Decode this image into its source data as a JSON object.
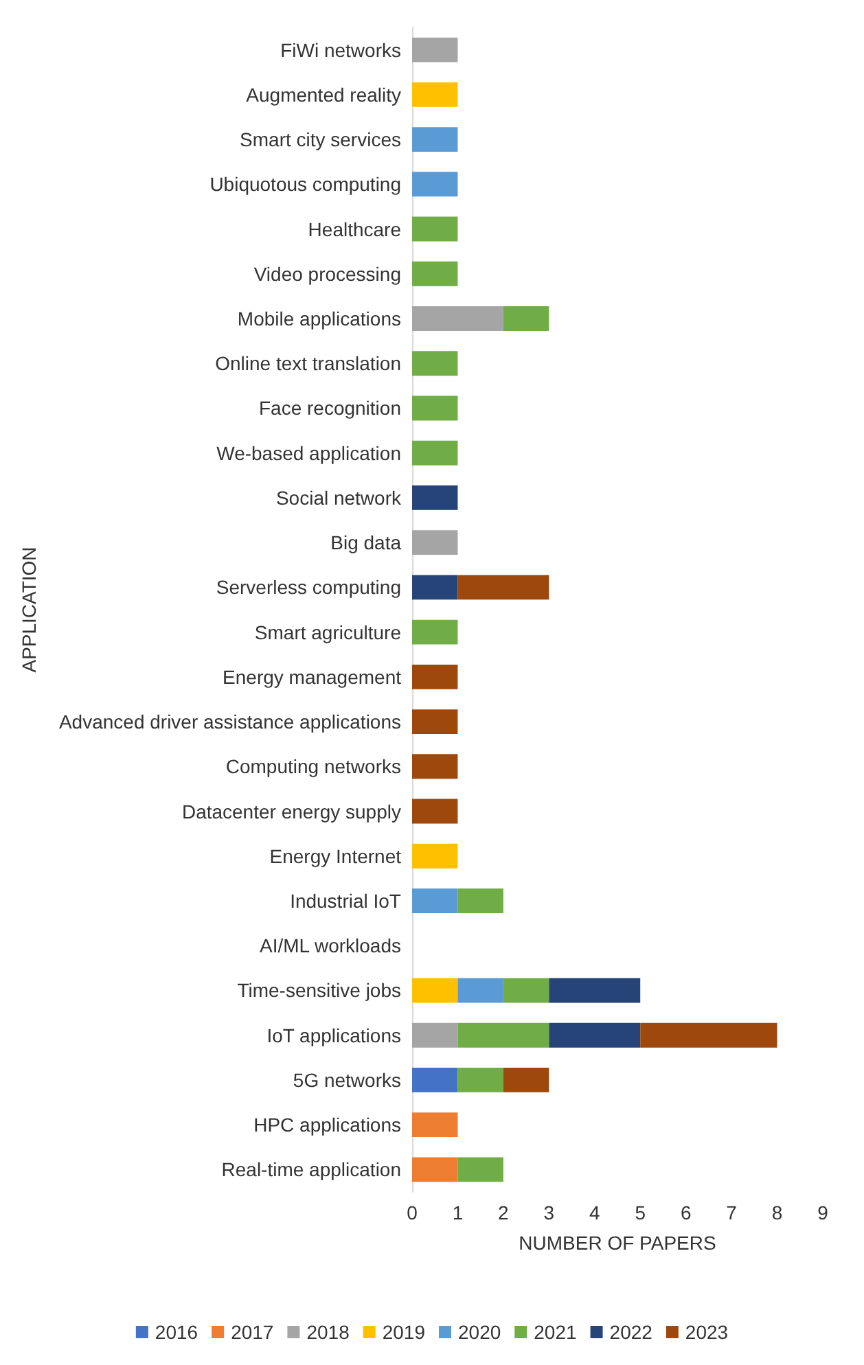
{
  "chart_data": {
    "type": "bar",
    "orientation": "horizontal",
    "stacked": true,
    "xlabel": "NUMBER OF PAPERS",
    "ylabel": "APPLICATION",
    "categories": [
      "FiWi networks",
      "Augmented reality",
      "Smart city services",
      "Ubiquotous computing",
      "Healthcare",
      "Video processing",
      "Mobile applications",
      "Online text translation",
      "Face recognition",
      "We-based application",
      "Social network",
      "Big data",
      "Serverless computing",
      "Smart agriculture",
      "Energy management",
      "Advanced driver assistance applications",
      "Computing networks",
      "Datacenter energy supply",
      "Energy Internet",
      "Industrial IoT",
      "AI/ML workloads",
      "Time-sensitive jobs",
      "IoT applications",
      "5G networks",
      "HPC applications",
      "Real-time application"
    ],
    "series": [
      {
        "name": "2016",
        "color": "#4472c4",
        "values": [
          null,
          null,
          null,
          null,
          null,
          null,
          null,
          null,
          null,
          null,
          null,
          null,
          null,
          null,
          null,
          null,
          null,
          null,
          null,
          null,
          null,
          null,
          null,
          1,
          null,
          null
        ]
      },
      {
        "name": "2017",
        "color": "#ed7d31",
        "values": [
          null,
          null,
          null,
          null,
          null,
          null,
          null,
          null,
          null,
          null,
          null,
          null,
          null,
          null,
          null,
          null,
          null,
          null,
          null,
          null,
          null,
          null,
          null,
          null,
          1,
          1
        ]
      },
      {
        "name": "2018",
        "color": "#a5a5a5",
        "values": [
          1,
          null,
          null,
          null,
          null,
          null,
          2,
          null,
          null,
          null,
          null,
          1,
          null,
          null,
          null,
          null,
          null,
          null,
          null,
          null,
          null,
          null,
          1,
          null,
          null,
          null
        ]
      },
      {
        "name": "2019",
        "color": "#ffc000",
        "values": [
          null,
          1,
          null,
          null,
          null,
          null,
          null,
          null,
          null,
          null,
          null,
          null,
          null,
          null,
          null,
          null,
          null,
          null,
          1,
          null,
          null,
          1,
          null,
          null,
          null,
          null
        ]
      },
      {
        "name": "2020",
        "color": "#5b9bd5",
        "values": [
          null,
          null,
          1,
          1,
          null,
          null,
          null,
          null,
          null,
          null,
          null,
          null,
          null,
          null,
          null,
          null,
          null,
          null,
          null,
          1,
          null,
          1,
          null,
          null,
          null,
          null
        ]
      },
      {
        "name": "2021",
        "color": "#70ad47",
        "values": [
          null,
          null,
          null,
          null,
          1,
          1,
          1,
          1,
          1,
          1,
          null,
          null,
          null,
          1,
          null,
          null,
          null,
          null,
          null,
          1,
          null,
          1,
          2,
          1,
          null,
          1
        ]
      },
      {
        "name": "2022",
        "color": "#264478",
        "values": [
          null,
          null,
          null,
          null,
          null,
          null,
          null,
          null,
          null,
          null,
          1,
          null,
          1,
          null,
          null,
          null,
          null,
          null,
          null,
          null,
          null,
          2,
          2,
          null,
          null,
          null
        ]
      },
      {
        "name": "2023",
        "color": "#9e480e",
        "values": [
          null,
          null,
          null,
          null,
          null,
          null,
          null,
          null,
          null,
          null,
          null,
          null,
          2,
          null,
          1,
          1,
          1,
          1,
          null,
          null,
          null,
          null,
          3,
          1,
          null,
          null
        ]
      }
    ],
    "xlim": [
      0,
      9
    ],
    "xticks": [
      0,
      1,
      2,
      3,
      4,
      5,
      6,
      7,
      8,
      9
    ],
    "grid": false,
    "legend": "bottom"
  }
}
